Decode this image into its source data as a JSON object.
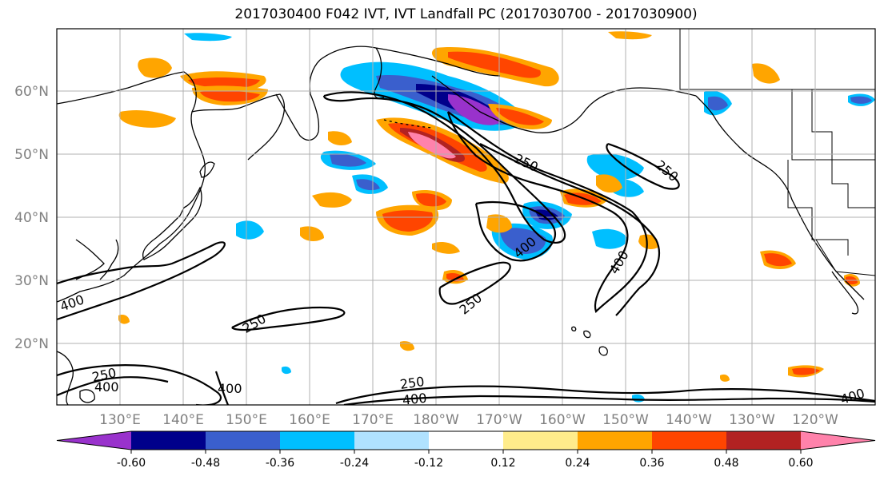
{
  "title": "2017030400 F042 IVT, IVT Landfall PC (2017030700 - 2017030900)",
  "lat_labels": [
    "20°N",
    "30°N",
    "40°N",
    "50°N",
    "60°N"
  ],
  "lon_labels": [
    "130°E",
    "140°E",
    "150°E",
    "160°E",
    "170°E",
    "180°W",
    "170°W",
    "160°W",
    "150°W",
    "140°W",
    "130°W",
    "120°W"
  ],
  "colorbar": {
    "colors": [
      "#9932cc",
      "#00008b",
      "#3a5fcd",
      "#00bfff",
      "#b0e2ff",
      "#ffffff",
      "#ffec8b",
      "#ffa500",
      "#ff4500",
      "#b22222",
      "#ff82ab"
    ],
    "tick_labels": [
      "-0.60",
      "-0.48",
      "-0.36",
      "-0.24",
      "-0.12",
      "0.12",
      "0.24",
      "0.36",
      "0.48",
      "0.60"
    ]
  },
  "contour_labels": [
    "250",
    "250",
    "250",
    "250",
    "250",
    "250",
    "400",
    "400",
    "400",
    "400",
    "400",
    "400",
    "400"
  ]
}
